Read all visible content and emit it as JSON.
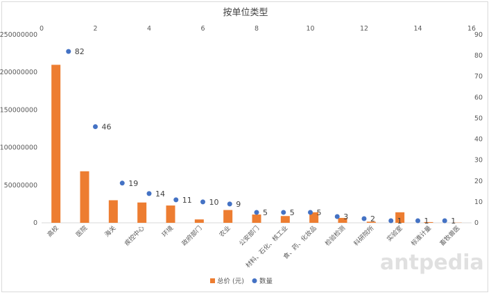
{
  "chart_data": {
    "type": "bar",
    "title": "按单位类型",
    "categories": [
      "高校",
      "医院",
      "海关",
      "疾控中心",
      "环境",
      "政府部门",
      "农业",
      "公安部门",
      "材料、石化、核工业",
      "食、药、化妆品",
      "检验检测",
      "科研院所",
      "实验室",
      "标准计量",
      "畜牧兽医"
    ],
    "series": [
      {
        "name": "总价 (元)",
        "type": "bar",
        "axis": "left",
        "color": "#ed7d31",
        "values": [
          210000000,
          68500000,
          30000000,
          27000000,
          23000000,
          4500000,
          17000000,
          11000000,
          9000000,
          14000000,
          6500000,
          1500000,
          14000000,
          1000000,
          300000
        ]
      },
      {
        "name": "数量",
        "type": "scatter",
        "axis": "secondary",
        "color": "#4472c4",
        "x": [
          1,
          2,
          3,
          4,
          5,
          6,
          7,
          8,
          9,
          10,
          11,
          12,
          13,
          14,
          15
        ],
        "values": [
          82,
          46,
          19,
          14,
          11,
          10,
          9,
          5,
          5,
          5,
          3,
          2,
          1,
          1,
          1
        ],
        "labels": [
          "82",
          "46",
          "19",
          "14",
          "11",
          "10",
          "9",
          "5",
          "5",
          "5",
          "3",
          "2",
          "1",
          "1",
          "1"
        ]
      }
    ],
    "y_left": {
      "range": [
        0,
        250000000
      ],
      "ticks": [
        "0",
        "50000000",
        "100000000",
        "150000000",
        "200000000",
        "250000000"
      ]
    },
    "y_right": {
      "range": [
        0,
        90
      ],
      "ticks": [
        "0",
        "10",
        "20",
        "30",
        "40",
        "50",
        "60",
        "70",
        "80",
        "90"
      ]
    },
    "x_top": {
      "range": [
        0,
        16
      ],
      "ticks": [
        "0",
        "2",
        "4",
        "6",
        "8",
        "10",
        "12",
        "14",
        "16"
      ]
    },
    "grid": false,
    "legend_position": "bottom",
    "watermark": "antpedia"
  }
}
